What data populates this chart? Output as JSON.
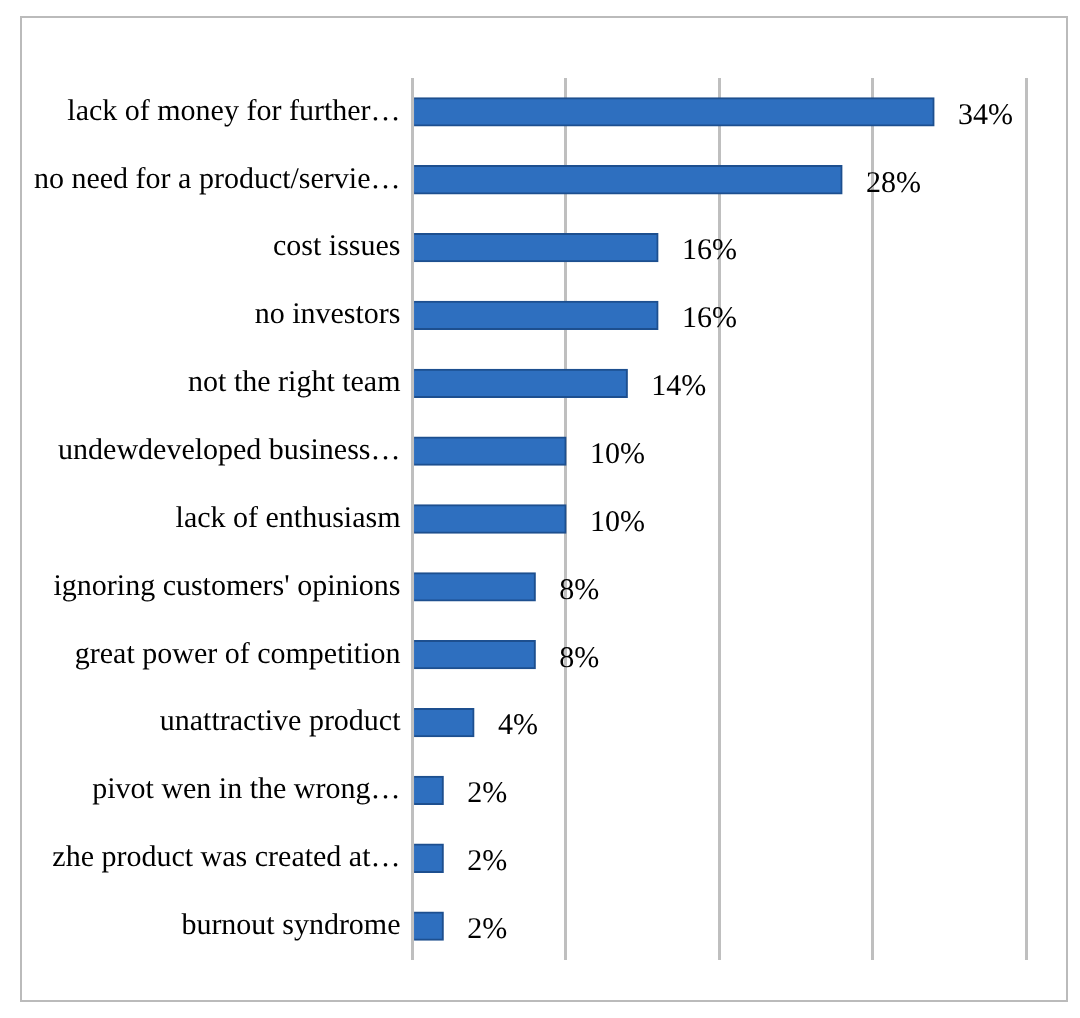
{
  "chart_data": {
    "type": "bar",
    "orientation": "horizontal",
    "categories": [
      "lack of money for further…",
      "no need for a product/servie…",
      "cost issues",
      "no investors",
      "not the right team",
      "undewdeveloped business…",
      "lack of enthusiasm",
      "ignoring customers' opinions",
      "great power of competition",
      "unattractive product",
      "pivot wen in the wrong…",
      "zhe product was created at…",
      "burnout syndrome"
    ],
    "values": [
      34,
      28,
      16,
      16,
      14,
      10,
      10,
      8,
      8,
      4,
      2,
      2,
      2
    ],
    "value_labels": [
      "34%",
      "28%",
      "16%",
      "16%",
      "14%",
      "10%",
      "10%",
      "8%",
      "8%",
      "4%",
      "2%",
      "2%",
      "2%"
    ],
    "color": "#2e6fbf",
    "xlim": [
      0,
      40
    ],
    "xticks": [
      {
        "value": 0,
        "label": null
      },
      {
        "value": 10,
        "label": null
      },
      {
        "value": 20,
        "label": null
      },
      {
        "value": 30,
        "label": null
      },
      {
        "value": 40,
        "label": null
      }
    ],
    "tick_labels": "y",
    "grid": "x",
    "legend": false
  }
}
